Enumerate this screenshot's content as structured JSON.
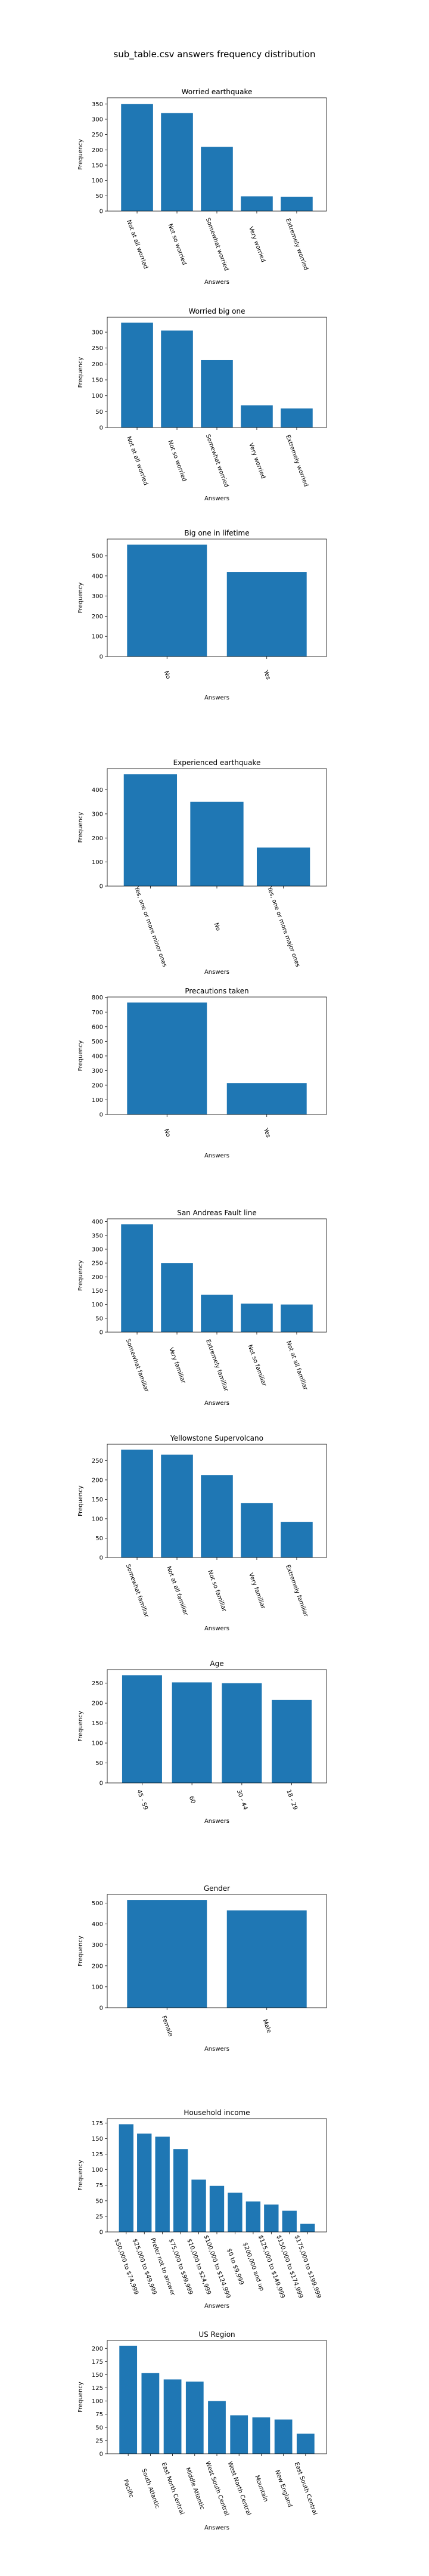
{
  "figure_title": "sub_table.csv answers frequency distribution",
  "colors": {
    "bar": "#1f77b4",
    "axis": "#000000",
    "background": "#ffffff"
  },
  "chart_data": [
    {
      "type": "bar",
      "title": "Worried earthquake",
      "xlabel": "Answers",
      "ylabel": "Frequency",
      "categories": [
        "Not at all worried",
        "Not so worried",
        "Somewhat worried",
        "Very worried",
        "Extremely worried"
      ],
      "values": [
        350,
        320,
        210,
        48,
        47
      ],
      "ylim": [
        0,
        370
      ],
      "yticks": [
        0,
        50,
        100,
        150,
        200,
        250,
        300,
        350
      ],
      "tick_rotation": 70
    },
    {
      "type": "bar",
      "title": "Worried big one",
      "xlabel": "Answers",
      "ylabel": "Frequency",
      "categories": [
        "Not at all worried",
        "Not so worried",
        "Somewhat worried",
        "Very worried",
        "Extremely worried"
      ],
      "values": [
        330,
        305,
        212,
        70,
        60
      ],
      "ylim": [
        0,
        347
      ],
      "yticks": [
        0,
        50,
        100,
        150,
        200,
        250,
        300
      ],
      "tick_rotation": 70
    },
    {
      "type": "bar",
      "title": "Big one in lifetime",
      "xlabel": "Answers",
      "ylabel": "Frequency",
      "categories": [
        "No",
        "Yes"
      ],
      "values": [
        555,
        420
      ],
      "ylim": [
        0,
        583
      ],
      "yticks": [
        0,
        100,
        200,
        300,
        400,
        500
      ],
      "tick_rotation": 70
    },
    {
      "type": "bar",
      "title": "Experienced earthquake",
      "xlabel": "Answers",
      "ylabel": "Frequency",
      "categories": [
        "Yes, one or more minor ones",
        "No",
        "Yes, one or more major ones"
      ],
      "values": [
        465,
        350,
        160
      ],
      "ylim": [
        0,
        488
      ],
      "yticks": [
        0,
        100,
        200,
        300,
        400
      ],
      "tick_rotation": 70
    },
    {
      "type": "bar",
      "title": "Precautions taken",
      "xlabel": "Answers",
      "ylabel": "Frequency",
      "categories": [
        "No",
        "Yes"
      ],
      "values": [
        765,
        215
      ],
      "ylim": [
        0,
        803
      ],
      "yticks": [
        0,
        100,
        200,
        300,
        400,
        500,
        600,
        700,
        800
      ],
      "tick_rotation": 70
    },
    {
      "type": "bar",
      "title": "San Andreas Fault line",
      "xlabel": "Answers",
      "ylabel": "Frequency",
      "categories": [
        "Somewhat familiar",
        "Very familiar",
        "Extremely familiar",
        "Not so familiar",
        "Not at all familiar"
      ],
      "values": [
        390,
        250,
        135,
        103,
        100
      ],
      "ylim": [
        0,
        410
      ],
      "yticks": [
        0,
        50,
        100,
        150,
        200,
        250,
        300,
        350,
        400
      ],
      "tick_rotation": 70
    },
    {
      "type": "bar",
      "title": "Yellowstone Supervolcano",
      "xlabel": "Answers",
      "ylabel": "Frequency",
      "categories": [
        "Somewhat familiar",
        "Not at all familiar",
        "Not so familiar",
        "Very familiar",
        "Extremely familiar"
      ],
      "values": [
        278,
        265,
        212,
        140,
        92
      ],
      "ylim": [
        0,
        292
      ],
      "yticks": [
        0,
        50,
        100,
        150,
        200,
        250
      ],
      "tick_rotation": 70
    },
    {
      "type": "bar",
      "title": "Age",
      "xlabel": "Answers",
      "ylabel": "Frequency",
      "categories": [
        "45 - 59",
        "60",
        "30 - 44",
        "18 - 29"
      ],
      "values": [
        270,
        252,
        250,
        208
      ],
      "ylim": [
        0,
        284
      ],
      "yticks": [
        0,
        50,
        100,
        150,
        200,
        250
      ],
      "tick_rotation": 70
    },
    {
      "type": "bar",
      "title": "Gender",
      "xlabel": "Answers",
      "ylabel": "Frequency",
      "categories": [
        "Female",
        "Male"
      ],
      "values": [
        515,
        465
      ],
      "ylim": [
        0,
        541
      ],
      "yticks": [
        0,
        100,
        200,
        300,
        400,
        500
      ],
      "tick_rotation": 70
    },
    {
      "type": "bar",
      "title": "Household income",
      "xlabel": "Answers",
      "ylabel": "Frequency",
      "categories": [
        "$50,000 to $74,999",
        "$25,000 to $49,999",
        "Prefer not to answer",
        "$75,000 to $99,999",
        "$10,000 to $24,999",
        "$100,000 to $124,999",
        "$0 to $9,999",
        "$200,000 and up",
        "$125,000 to $149,999",
        "$150,000 to $174,999",
        "$175,000 to $199,999"
      ],
      "values": [
        173,
        158,
        153,
        133,
        84,
        74,
        63,
        49,
        44,
        34,
        13
      ],
      "ylim": [
        0,
        182
      ],
      "yticks": [
        0,
        25,
        50,
        75,
        100,
        125,
        150,
        175
      ],
      "tick_rotation": 70
    },
    {
      "type": "bar",
      "title": "US Region",
      "xlabel": "Answers",
      "ylabel": "Frequency",
      "categories": [
        "Pacific",
        "South Atlantic",
        "East North Central",
        "Middle Atlantic",
        "West South Central",
        "West North Central",
        "Mountain",
        "New England",
        "East South Central"
      ],
      "values": [
        205,
        153,
        141,
        137,
        100,
        73,
        69,
        65,
        38
      ],
      "ylim": [
        0,
        215
      ],
      "yticks": [
        0,
        25,
        50,
        75,
        100,
        125,
        150,
        175,
        200
      ],
      "tick_rotation": 70
    }
  ]
}
